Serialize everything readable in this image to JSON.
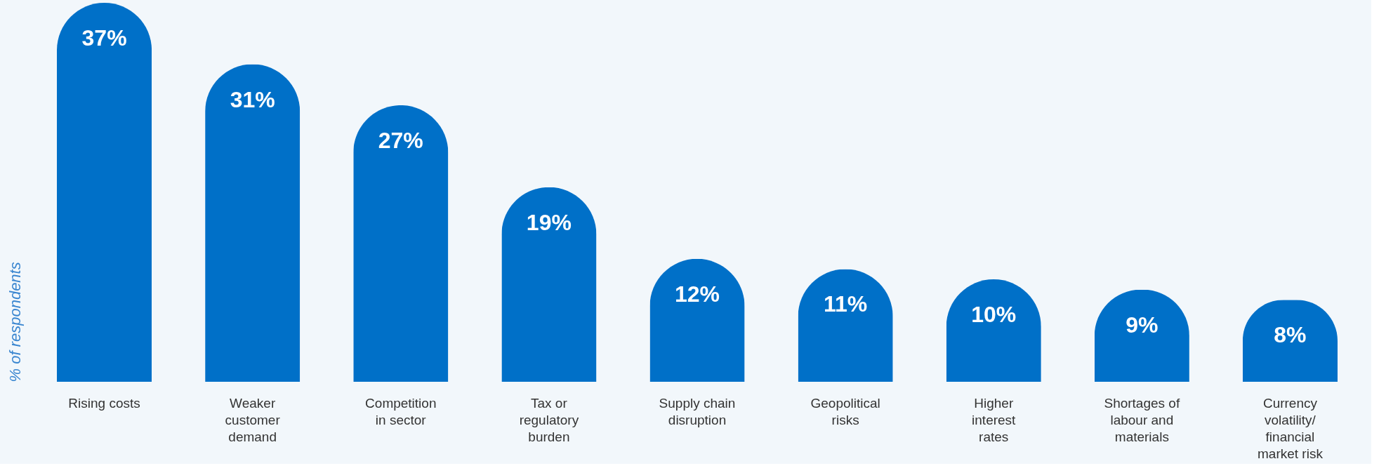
{
  "chart_data": {
    "type": "bar",
    "ylabel": "% of respondents",
    "categories": [
      "Rising costs",
      "Weaker customer demand",
      "Competition in sector",
      "Tax or regulatory burden",
      "Supply chain disruption",
      "Geopolitical risks",
      "Higher interest rates",
      "Shortages of labour and materials",
      "Currency volatility/ financial market risk"
    ],
    "values": [
      37,
      31,
      27,
      19,
      12,
      11,
      10,
      9,
      8
    ],
    "value_labels": [
      "37%",
      "31%",
      "27%",
      "19%",
      "12%",
      "11%",
      "10%",
      "9%",
      "8%"
    ],
    "color": "#0070c8",
    "grid": false
  }
}
